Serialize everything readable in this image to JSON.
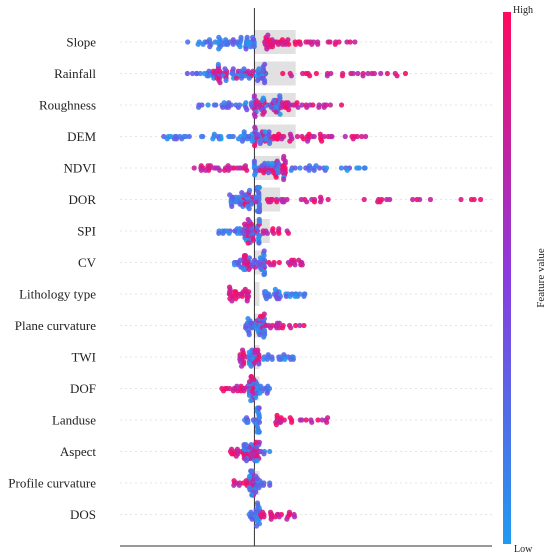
{
  "chart_data": {
    "type": "scatter",
    "subtype": "beeswarm",
    "title": "",
    "xlabel": "",
    "ylabel": "",
    "xlim": [
      -0.26,
      0.46
    ],
    "colors": {
      "low": "#1e9bf0",
      "mid": "#8a3be0",
      "high": "#ff0a5e",
      "baseline": "#000000",
      "grid": "#cccccc"
    },
    "colorbar": {
      "label_high": "High",
      "label_low": "Low",
      "title": "Feature value"
    },
    "features": [
      {
        "name": "Slope",
        "importance": 0.08,
        "low_range": [
          -0.13,
          0.0
        ],
        "high_range": [
          0.02,
          0.2
        ],
        "pts": 100
      },
      {
        "name": "Rainfall",
        "importance": 0.08,
        "low_range": [
          -0.14,
          0.02
        ],
        "high_range": [
          -0.08,
          0.3
        ],
        "pts": 110
      },
      {
        "name": "Roughness",
        "importance": 0.08,
        "low_range": [
          -0.12,
          0.05
        ],
        "high_range": [
          0.0,
          0.17
        ],
        "pts": 100
      },
      {
        "name": "DEM",
        "importance": 0.08,
        "low_range": [
          -0.19,
          0.03
        ],
        "high_range": [
          0.0,
          0.23
        ],
        "pts": 110
      },
      {
        "name": "NDVI",
        "importance": 0.05,
        "low_range": [
          0.0,
          0.22
        ],
        "high_range": [
          -0.12,
          0.06
        ],
        "pts": 110
      },
      {
        "name": "DOR",
        "importance": 0.05,
        "low_range": [
          -0.05,
          0.01
        ],
        "high_range": [
          -0.02,
          0.45
        ],
        "pts": 100
      },
      {
        "name": "SPI",
        "importance": 0.03,
        "low_range": [
          -0.07,
          0.01
        ],
        "high_range": [
          -0.02,
          0.07
        ],
        "pts": 70
      },
      {
        "name": "CV",
        "importance": 0.02,
        "low_range": [
          -0.04,
          0.02
        ],
        "high_range": [
          -0.02,
          0.1
        ],
        "pts": 70
      },
      {
        "name": "Lithology type",
        "importance": 0.01,
        "low_range": [
          0.02,
          0.1
        ],
        "high_range": [
          -0.05,
          -0.01
        ],
        "pts": 60
      },
      {
        "name": "Plane curvature",
        "importance": 0.01,
        "low_range": [
          -0.02,
          0.02
        ],
        "high_range": [
          0.0,
          0.1
        ],
        "pts": 60
      },
      {
        "name": "TWI",
        "importance": 0.01,
        "low_range": [
          -0.01,
          0.08
        ],
        "high_range": [
          -0.03,
          0.01
        ],
        "pts": 60
      },
      {
        "name": "DOF",
        "importance": 0.01,
        "low_range": [
          -0.01,
          0.03
        ],
        "high_range": [
          -0.07,
          0.0
        ],
        "pts": 60
      },
      {
        "name": "Landuse",
        "importance": 0.01,
        "low_range": [
          -0.02,
          0.01
        ],
        "high_range": [
          0.04,
          0.15
        ],
        "pts": 50
      },
      {
        "name": "Aspect",
        "importance": 0.01,
        "low_range": [
          -0.02,
          0.03
        ],
        "high_range": [
          -0.05,
          0.01
        ],
        "pts": 60
      },
      {
        "name": "Profile curvature",
        "importance": 0.01,
        "low_range": [
          -0.01,
          0.03
        ],
        "high_range": [
          -0.04,
          0.0
        ],
        "pts": 55
      },
      {
        "name": "DOS",
        "importance": 0.005,
        "low_range": [
          -0.01,
          0.01
        ],
        "high_range": [
          0.01,
          0.08
        ],
        "pts": 45
      }
    ]
  }
}
